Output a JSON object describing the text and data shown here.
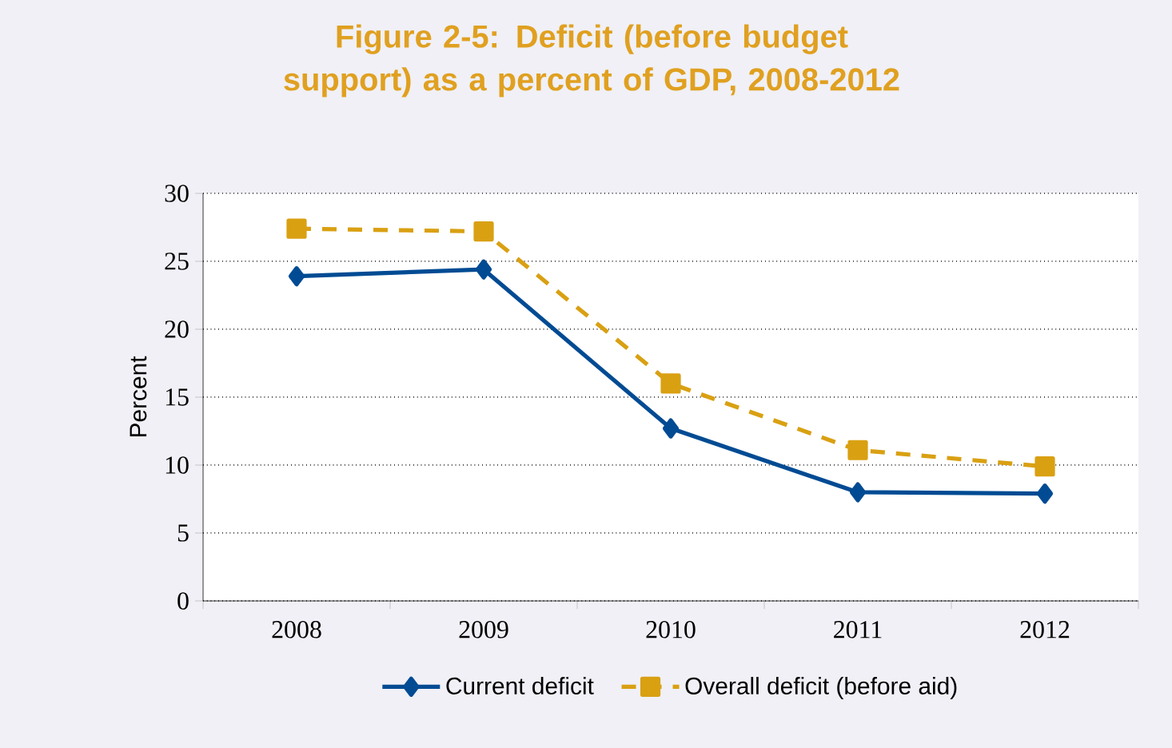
{
  "chart_data": {
    "type": "line",
    "title": "Figure 2-5: Deficit (before budget support) as a percent of GDP, 2008-2012",
    "ylabel": "Percent",
    "categories": [
      "2008",
      "2009",
      "2010",
      "2011",
      "2012"
    ],
    "series": [
      {
        "name": "Current deficit",
        "color": "#004b93",
        "marker": "diamond",
        "line_style": "solid",
        "values": [
          23.9,
          24.4,
          12.7,
          8.0,
          7.9
        ]
      },
      {
        "name": "Overall deficit (before aid)",
        "color": "#d9a012",
        "marker": "square",
        "line_style": "dashed",
        "values": [
          27.4,
          27.2,
          16.0,
          11.1,
          9.9
        ]
      }
    ],
    "ylim": [
      0,
      30
    ],
    "yticks": [
      0,
      5,
      10,
      15,
      20,
      25,
      30
    ],
    "grid": "y",
    "legend": "bottom"
  }
}
